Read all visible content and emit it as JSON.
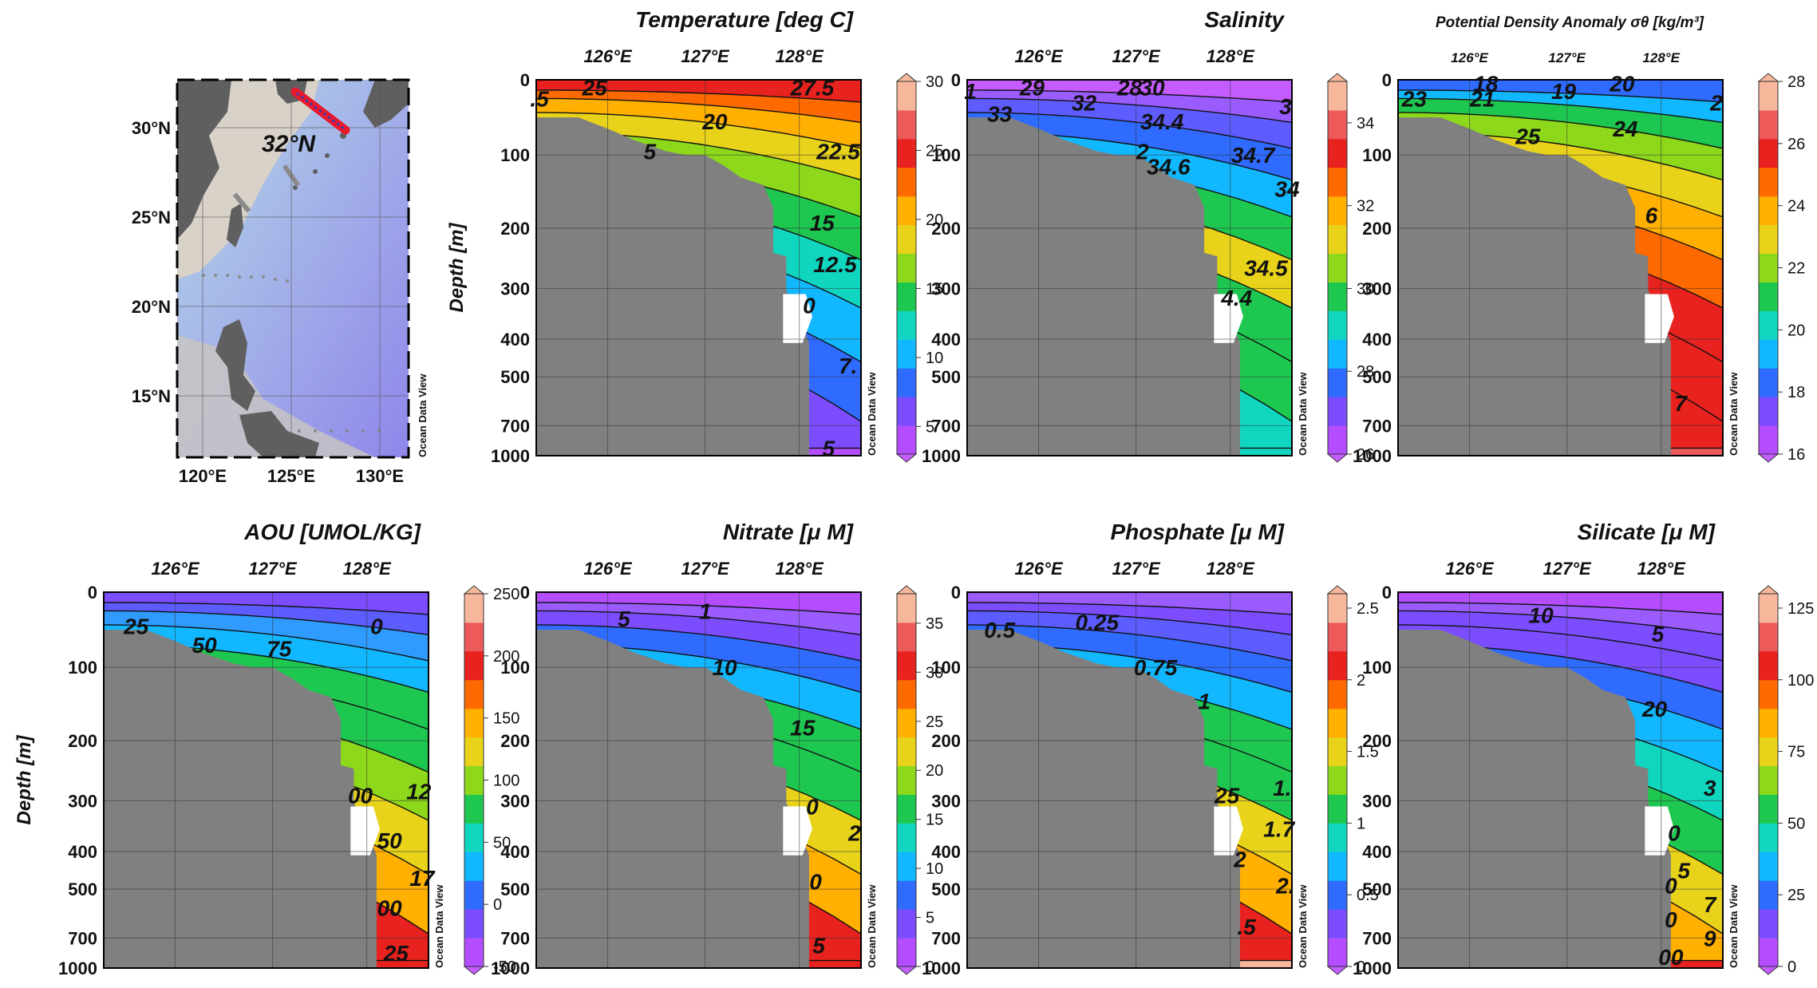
{
  "figure": {
    "watermark": "Ocean Data View",
    "depth_label": "Depth [m]"
  },
  "map": {
    "lat_labels": [
      "30°N",
      "25°N",
      "20°N",
      "15°N"
    ],
    "lon_labels": [
      "120°E",
      "125°E",
      "130°E"
    ],
    "section_label": "32°N",
    "colors": {
      "ocean_deep": "#9b8fe8",
      "ocean_shelf": "#a9c7d8",
      "land": "#5f5f5f",
      "track": "#e8192c",
      "track_station": "#2a3fbf",
      "other_stations": "#8a8a8a"
    }
  },
  "chart_data": [
    {
      "type": "heatmap",
      "title": "Temperature [deg C]",
      "x_ticks": [
        "126°E",
        "127°E",
        "128°E"
      ],
      "ylabel": "Depth [m]",
      "y_ticks": [
        0,
        100,
        200,
        300,
        400,
        500,
        700,
        1000
      ],
      "colorbar": {
        "ticks": [
          5,
          10,
          15,
          20,
          25,
          30
        ],
        "range": [
          3,
          30
        ]
      },
      "contour_labels": [
        ".5",
        "25",
        "27.5",
        "20",
        "5",
        "22.5",
        "15",
        "12.5",
        "0",
        "7.",
        "5"
      ]
    },
    {
      "type": "heatmap",
      "title": "Salinity",
      "x_ticks": [
        "126°E",
        "127°E",
        "128°E"
      ],
      "y_ticks": [
        0,
        100,
        200,
        300,
        400,
        500,
        700,
        1000
      ],
      "colorbar": {
        "ticks": [
          26,
          28,
          30,
          32,
          34
        ],
        "range": [
          26,
          35
        ]
      },
      "contour_labels": [
        "1",
        "29",
        "28",
        "30",
        "33",
        "32",
        "3",
        "34.4",
        "2",
        "34.6",
        "34.7",
        "34",
        "34.5",
        "4.4"
      ]
    },
    {
      "type": "heatmap",
      "title": "Potential Density Anomaly σθ [kg/m³]",
      "x_ticks": [
        "126°E",
        "127°E",
        "128°E"
      ],
      "y_ticks": [
        0,
        100,
        200,
        300,
        400,
        500,
        700,
        1000
      ],
      "colorbar": {
        "ticks": [
          16,
          18,
          20,
          22,
          24,
          26,
          28
        ],
        "range": [
          16,
          28
        ]
      },
      "contour_labels": [
        "23",
        "18",
        "21",
        "19",
        "20",
        "2",
        "25",
        "24",
        "6",
        "7"
      ]
    },
    {
      "type": "heatmap",
      "title": "AOU [UMOL/KG]",
      "x_ticks": [
        "126°E",
        "127°E",
        "128°E"
      ],
      "ylabel": "Depth [m]",
      "y_ticks": [
        0,
        100,
        200,
        300,
        400,
        500,
        700,
        1000
      ],
      "colorbar": {
        "ticks": [
          -50,
          0,
          50,
          100,
          150,
          200,
          250
        ],
        "range": [
          -50,
          250
        ]
      },
      "contour_labels": [
        "25",
        "0",
        "50",
        "75",
        "00",
        "12",
        "50",
        "17",
        "00",
        "25"
      ]
    },
    {
      "type": "heatmap",
      "title": "Nitrate [μ M]",
      "x_ticks": [
        "126°E",
        "127°E",
        "128°E"
      ],
      "y_ticks": [
        0,
        100,
        200,
        300,
        400,
        500,
        700,
        1000
      ],
      "colorbar": {
        "ticks": [
          0,
          5,
          10,
          15,
          20,
          25,
          30,
          35
        ],
        "range": [
          0,
          38
        ]
      },
      "contour_labels": [
        "1",
        "5",
        "10",
        "15",
        "0",
        "2",
        "0",
        "5"
      ]
    },
    {
      "type": "heatmap",
      "title": "Phosphate [μ M]",
      "x_ticks": [
        "126°E",
        "127°E",
        "128°E"
      ],
      "y_ticks": [
        0,
        100,
        200,
        300,
        400,
        500,
        700,
        1000
      ],
      "colorbar": {
        "ticks": [
          0,
          0.5,
          1,
          1.5,
          2,
          2.5
        ],
        "range": [
          0,
          2.6
        ]
      },
      "contour_labels": [
        "0.5",
        "0.25",
        "0.75",
        "1",
        "25",
        "1.",
        "1.7",
        "2",
        "2.",
        ".5"
      ]
    },
    {
      "type": "heatmap",
      "title": "Silicate [μ M]",
      "x_ticks": [
        "126°E",
        "127°E",
        "128°E"
      ],
      "y_ticks": [
        0,
        100,
        200,
        300,
        400,
        500,
        700,
        1000
      ],
      "colorbar": {
        "ticks": [
          0,
          25,
          50,
          75,
          100,
          125
        ],
        "range": [
          0,
          130
        ]
      },
      "contour_labels": [
        "10",
        "5",
        "20",
        "3",
        "0",
        "5",
        "0",
        "7",
        "0",
        "9",
        "00"
      ]
    }
  ]
}
